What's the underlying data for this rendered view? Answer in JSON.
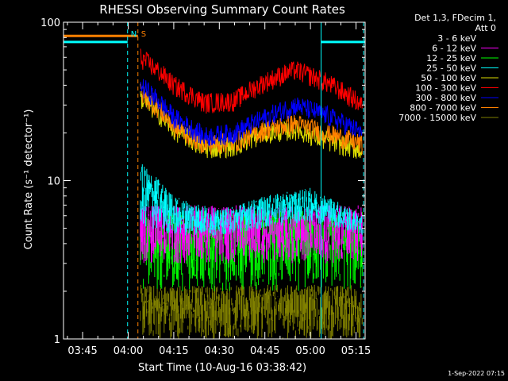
{
  "chart_data": {
    "type": "line",
    "title": "RHESSI Observing Summary Count Rates",
    "xlabel": "Start Time (10-Aug-16 03:38:42)",
    "ylabel": "Count Rate (s⁻¹ detector⁻¹)",
    "yscale": "log",
    "ylim": [
      1,
      100
    ],
    "xlim_minutes": [
      218.7,
      318.0
    ],
    "x_ticks": [
      {
        "label": "03:45",
        "minutes": 225
      },
      {
        "label": "04:00",
        "minutes": 240
      },
      {
        "label": "04:15",
        "minutes": 255
      },
      {
        "label": "04:30",
        "minutes": 270
      },
      {
        "label": "04:45",
        "minutes": 285
      },
      {
        "label": "05:00",
        "minutes": 300
      },
      {
        "label": "05:15",
        "minutes": 315
      }
    ],
    "y_ticks": [
      {
        "label": "1",
        "value": 1
      },
      {
        "label": "10",
        "value": 10
      },
      {
        "label": "100",
        "value": 100
      }
    ],
    "legend": {
      "placement": "top-right-outside",
      "header": [
        "Det 1,3, FDecim 1,",
        "Att 0"
      ],
      "entries": [
        {
          "label": "3 - 6 keV",
          "color": "#000000"
        },
        {
          "label": "6 - 12 keV",
          "color": "#ff00ff"
        },
        {
          "label": "12 - 25 keV",
          "color": "#00ff00"
        },
        {
          "label": "25 - 50 keV",
          "color": "#00ffff"
        },
        {
          "label": "50 - 100 keV",
          "color": "#dddd00"
        },
        {
          "label": "100 - 300 keV",
          "color": "#ff0000"
        },
        {
          "label": "300 - 800 keV",
          "color": "#0000ff"
        },
        {
          "label": "800 - 7000 keV",
          "color": "#ff8000"
        },
        {
          "label": "7000 - 15000 keV",
          "color": "#808000"
        }
      ]
    },
    "series": [
      {
        "color": "#000000",
        "kind": "band",
        "x": [
          244,
          317
        ],
        "low": [
          1,
          1
        ],
        "high": [
          2.8,
          2.8
        ]
      },
      {
        "color": "#808000",
        "kind": "band",
        "x": [
          244,
          317
        ],
        "low": [
          1,
          1
        ],
        "high": [
          2.2,
          2.2
        ]
      },
      {
        "color": "#00ff00",
        "kind": "band",
        "x": [
          244,
          317
        ],
        "low": [
          2,
          2
        ],
        "high": [
          6.5,
          6.5
        ]
      },
      {
        "color": "#ff00ff",
        "kind": "band",
        "x": [
          244,
          317
        ],
        "low": [
          3,
          3
        ],
        "high": [
          7,
          7
        ]
      },
      {
        "color": "#00ffff",
        "kind": "band",
        "x": [
          244,
          255,
          270,
          285,
          300,
          317
        ],
        "low": [
          5,
          4.5,
          4.5,
          5,
          5.5,
          4.5
        ],
        "high": [
          13,
          8,
          6.5,
          8,
          9,
          6
        ]
      },
      {
        "color": "#dddd00",
        "kind": "line",
        "x": [
          244,
          255,
          265,
          275,
          285,
          295,
          305,
          317
        ],
        "y": [
          33,
          21,
          16,
          16.5,
          20,
          21,
          18,
          15.5
        ]
      },
      {
        "color": "#ff8000",
        "kind": "line",
        "x": [
          244,
          255,
          265,
          275,
          285,
          295,
          305,
          317
        ],
        "y": [
          36,
          22,
          17,
          17.5,
          21,
          23,
          20,
          17
        ]
      },
      {
        "color": "#0000ff",
        "kind": "line",
        "x": [
          244,
          255,
          265,
          275,
          285,
          295,
          305,
          317
        ],
        "y": [
          40,
          25,
          19,
          20,
          25,
          30,
          26,
          20
        ]
      },
      {
        "color": "#ff0000",
        "kind": "line",
        "x": [
          244,
          255,
          265,
          275,
          285,
          295,
          305,
          317
        ],
        "y": [
          60,
          40,
          31,
          32,
          42,
          50,
          42,
          30
        ]
      }
    ],
    "state_markers": [
      {
        "label": "N",
        "color": "#00ffff",
        "x": 239.8,
        "kind": "dashed-vertical"
      },
      {
        "label": "S",
        "color": "#ff8000",
        "x": 243.2,
        "kind": "dashed-vertical"
      }
    ],
    "state_bars": [
      {
        "color": "#00ffff",
        "x": [
          218.7,
          239.8
        ],
        "y": 75
      },
      {
        "color": "#00ffff",
        "x": [
          303.5,
          318
        ],
        "y": 75
      },
      {
        "color": "#ff8000",
        "x": [
          218.7,
          243.2
        ],
        "y": 82
      }
    ],
    "extra_verticals": [
      {
        "color": "#00ffff",
        "x": 303.5,
        "kind": "solid"
      },
      {
        "color": "#00ffff",
        "x": 317.5,
        "kind": "dashed"
      }
    ],
    "timestamp": "1-Sep-2022 07:15"
  }
}
